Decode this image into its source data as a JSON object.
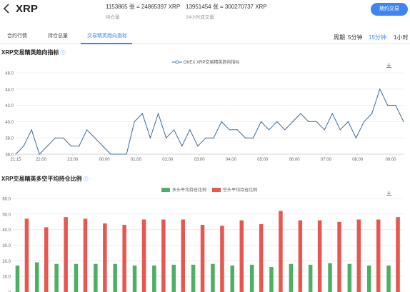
{
  "header": {
    "back_icon": "chevron-left-icon",
    "title": "XRP",
    "stats": [
      {
        "value": "1153865 张 = 24865397 XRP",
        "label": "持仓量"
      },
      {
        "value": "13951454 张 = 300270737 XRP",
        "label": "24小时成交量"
      }
    ],
    "trade_button": "期约交易"
  },
  "tabs": [
    {
      "label": "合约行情",
      "active": false
    },
    {
      "label": "持仓总量",
      "active": false
    },
    {
      "label": "交易精英趋向指标",
      "active": true
    }
  ],
  "periods": {
    "label": "周期",
    "options": [
      {
        "label": "5分钟",
        "active": false
      },
      {
        "label": "15分钟",
        "active": true
      },
      {
        "label": "1小时",
        "active": false
      }
    ]
  },
  "colors": {
    "accent": "#3c86f4",
    "line": "#3d6b9a",
    "long": "#4caf64",
    "short": "#e8574f"
  },
  "chart1_section": {
    "title": "XRP交易精英趋向指标",
    "info_icon": "info-icon",
    "download_icon": "download-icon"
  },
  "chart2_section": {
    "title": "XRP交易精英多空平均持仓比例",
    "info_icon": "info-icon",
    "download_icon": "download-icon"
  },
  "chart_data": [
    {
      "type": "line",
      "title": "",
      "legend": [
        "OKEX XRP交易精英趋向指标"
      ],
      "legend_position": "top-center",
      "ylim": [
        36.0,
        46.0
      ],
      "y_ticks": [
        "36.0",
        "38.0",
        "40.0",
        "42.0",
        "44.0",
        "46.0"
      ],
      "x_ticks": [
        "21:15",
        "22:00",
        "23:00",
        "00:00",
        "01:00",
        "02:00",
        "03:00",
        "04:00",
        "05:00",
        "06:00",
        "07:00",
        "08:00",
        "09:00"
      ],
      "grid": true,
      "series": [
        {
          "name": "OKEX XRP交易精英趋向指标",
          "values": [
            36,
            37,
            39,
            36,
            37,
            38,
            38,
            37,
            37,
            39,
            38,
            37,
            36,
            36,
            36,
            40,
            41,
            38,
            41,
            38,
            39,
            37,
            39,
            37,
            38,
            38,
            40,
            39,
            39,
            38,
            38,
            40,
            39,
            40,
            39,
            40,
            41,
            40,
            40,
            39,
            41,
            39,
            40,
            38,
            40,
            41,
            44,
            42,
            42,
            40
          ]
        }
      ]
    },
    {
      "type": "bar",
      "title": "",
      "legend": [
        "多头平均持仓比例",
        "空头平均持仓比例"
      ],
      "legend_position": "top-center",
      "ylim": [
        0,
        60
      ],
      "y_ticks": [
        "0",
        "10.0",
        "20.0",
        "30.0",
        "40.0",
        "50.0",
        "60.0"
      ],
      "grid": true,
      "series": [
        {
          "name": "多头平均持仓比例",
          "values": [
            17,
            19,
            18,
            18,
            18,
            18,
            17,
            17,
            17.5,
            17.5,
            18,
            17,
            17.5,
            16,
            18,
            17.5,
            18.5,
            18,
            17,
            17
          ]
        },
        {
          "name": "空头平均持仓比例",
          "values": [
            47,
            41.5,
            48,
            47,
            44,
            43,
            46.5,
            46.5,
            46.5,
            43,
            42.5,
            46,
            43.5,
            52,
            46,
            46,
            45,
            46.5,
            46.5,
            48
          ]
        }
      ]
    }
  ]
}
